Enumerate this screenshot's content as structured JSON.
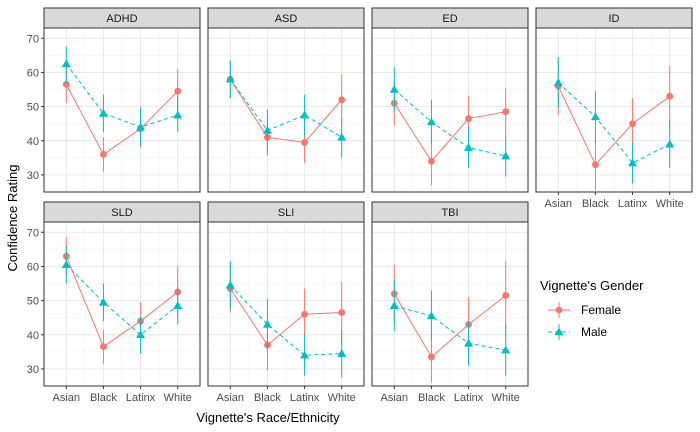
{
  "chart_data": {
    "type": "line",
    "layout": "faceted (small multiples), shared axes",
    "xlabel": "Vignette's Race/Ethnicity",
    "ylabel": "Confidence Rating",
    "categories": [
      "Asian",
      "Black",
      "Latinx",
      "White"
    ],
    "yticks": [
      30,
      40,
      50,
      60,
      70
    ],
    "ylim": [
      25,
      73
    ],
    "grid": true,
    "legend": {
      "title": "Vignette's Gender",
      "placement": "right",
      "entries": [
        {
          "name": "Female",
          "color": "#F8766D",
          "marker": "circle",
          "line": "solid"
        },
        {
          "name": "Male",
          "color": "#00BFC4",
          "marker": "triangle",
          "line": "dashed"
        }
      ]
    },
    "facet_strip_color": "#D9D9D9",
    "panels": [
      {
        "title": "ADHD",
        "series": [
          {
            "name": "Female",
            "values": [
              56.5,
              36,
              43.5,
              54.5
            ],
            "lower": [
              51,
              31,
              38,
              47.5
            ],
            "upper": [
              61.5,
              41,
              50,
              61
            ]
          },
          {
            "name": "Male",
            "values": [
              62.5,
              48,
              44,
              47.5
            ],
            "lower": [
              56.5,
              42.5,
              38.5,
              42.5
            ],
            "upper": [
              67.5,
              53.5,
              49.5,
              53
            ]
          }
        ]
      },
      {
        "title": "ASD",
        "series": [
          {
            "name": "Female",
            "values": [
              58,
              41,
              39.5,
              52
            ],
            "lower": [
              52.5,
              35.5,
              33.5,
              45
            ],
            "upper": [
              63.5,
              46.5,
              45,
              59.5
            ]
          },
          {
            "name": "Male",
            "values": [
              58,
              43,
              47.5,
              41
            ],
            "lower": [
              52.5,
              37,
              41.5,
              35
            ],
            "upper": [
              63.5,
              49,
              53.5,
              46.5
            ]
          }
        ]
      },
      {
        "title": "ED",
        "series": [
          {
            "name": "Female",
            "values": [
              51,
              34,
              46.5,
              48.5
            ],
            "lower": [
              44.5,
              27,
              40,
              41.5
            ],
            "upper": [
              57.5,
              41,
              53,
              55.5
            ]
          },
          {
            "name": "Male",
            "values": [
              55,
              45.5,
              38,
              35.5
            ],
            "lower": [
              48.5,
              39,
              32,
              29.5
            ],
            "upper": [
              61.5,
              52,
              44,
              41.5
            ]
          }
        ]
      },
      {
        "title": "ID",
        "series": [
          {
            "name": "Female",
            "values": [
              56,
              33,
              45,
              53
            ],
            "lower": [
              47.5,
              25.5,
              37.5,
              44
            ],
            "upper": [
              64.5,
              40.5,
              52.5,
              62
            ]
          },
          {
            "name": "Male",
            "values": [
              57,
              47,
              33.5,
              39
            ],
            "lower": [
              49.5,
              39.5,
              27.5,
              32
            ],
            "upper": [
              64.5,
              54.5,
              39.5,
              46
            ]
          }
        ]
      },
      {
        "title": "SLD",
        "series": [
          {
            "name": "Female",
            "values": [
              63,
              36.5,
              44,
              52.5
            ],
            "lower": [
              57.5,
              31.5,
              38.5,
              45
            ],
            "upper": [
              68.5,
              41.5,
              49.5,
              60
            ]
          },
          {
            "name": "Male",
            "values": [
              60.5,
              49.5,
              40,
              48.5
            ],
            "lower": [
              55,
              44,
              34.5,
              43
            ],
            "upper": [
              66,
              55,
              45.5,
              54
            ]
          }
        ]
      },
      {
        "title": "SLI",
        "series": [
          {
            "name": "Female",
            "values": [
              53.5,
              37,
              46,
              46.5
            ],
            "lower": [
              46.5,
              29.5,
              39,
              37.5
            ],
            "upper": [
              60.5,
              44.5,
              53.5,
              55.5
            ]
          },
          {
            "name": "Male",
            "values": [
              54.5,
              43,
              34,
              34.5
            ],
            "lower": [
              47.5,
              35.5,
              28,
              27.5
            ],
            "upper": [
              61.5,
              50.5,
              40,
              41.5
            ]
          }
        ]
      },
      {
        "title": "TBI",
        "series": [
          {
            "name": "Female",
            "values": [
              52,
              33.5,
              43,
              51.5
            ],
            "lower": [
              43.5,
              26,
              35,
              42
            ],
            "upper": [
              60.5,
              41,
              51,
              61.5
            ]
          },
          {
            "name": "Male",
            "values": [
              48.5,
              45.5,
              37.5,
              35.5
            ],
            "lower": [
              41,
              38,
              31,
              28
            ],
            "upper": [
              56,
              53,
              44,
              43
            ]
          }
        ]
      }
    ]
  }
}
